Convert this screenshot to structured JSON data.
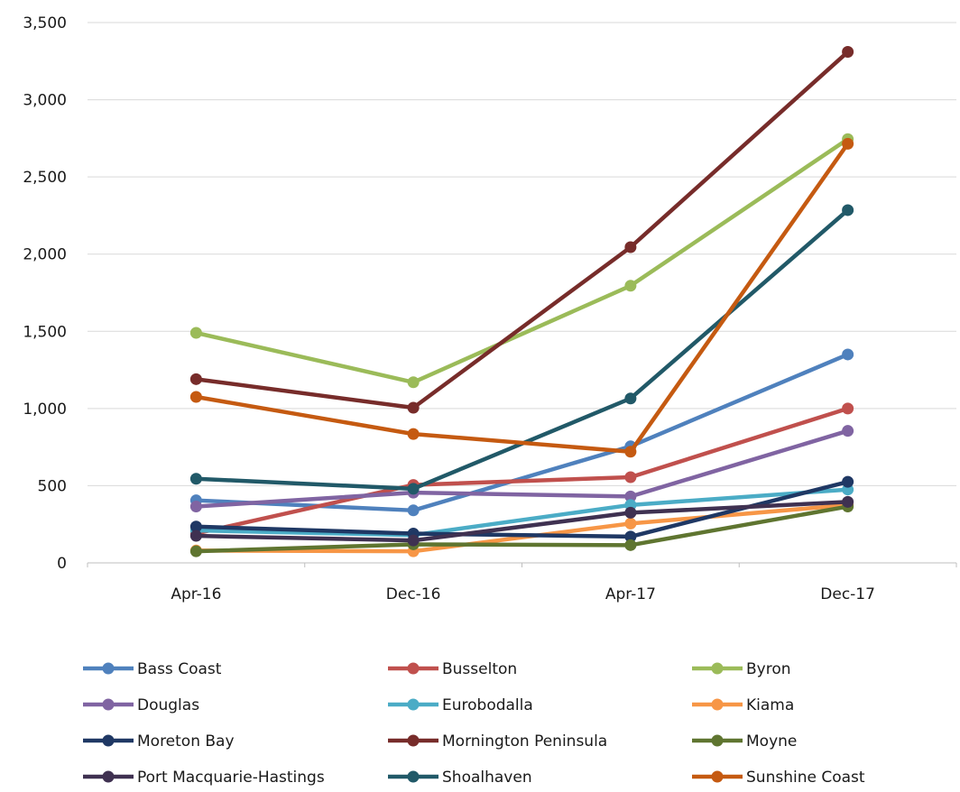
{
  "chart_data": {
    "type": "line",
    "title": "",
    "xlabel": "",
    "ylabel": "",
    "categories": [
      "Apr-16",
      "Dec-16",
      "Apr-17",
      "Dec-17"
    ],
    "ylim": [
      0,
      3500
    ],
    "yticks": [
      0,
      500,
      1000,
      1500,
      2000,
      2500,
      3000,
      3500
    ],
    "ytick_labels": [
      "0",
      "500",
      "1,000",
      "1,500",
      "2,000",
      "2,500",
      "3,000",
      "3,500"
    ],
    "grid": true,
    "legend_position": "bottom",
    "series": [
      {
        "name": "Bass Coast",
        "color": "#4F81BD",
        "values": [
          405,
          340,
          755,
          1350
        ]
      },
      {
        "name": "Busselton",
        "color": "#C0504D",
        "values": [
          190,
          505,
          555,
          1000
        ]
      },
      {
        "name": "Byron",
        "color": "#9BBB59",
        "values": [
          1490,
          1170,
          1795,
          2745
        ]
      },
      {
        "name": "Douglas",
        "color": "#8064A2",
        "values": [
          365,
          455,
          430,
          855
        ]
      },
      {
        "name": "Eurobodalla",
        "color": "#4BACC6",
        "values": [
          210,
          180,
          375,
          475
        ]
      },
      {
        "name": "Kiama",
        "color": "#F79646",
        "values": [
          80,
          75,
          255,
          375
        ]
      },
      {
        "name": "Moreton Bay",
        "color": "#1F3864",
        "values": [
          235,
          190,
          170,
          525
        ]
      },
      {
        "name": "Mornington Peninsula",
        "color": "#772C2A",
        "values": [
          1190,
          1005,
          2045,
          3310
        ]
      },
      {
        "name": "Moyne",
        "color": "#5F7530",
        "values": [
          75,
          120,
          115,
          365
        ]
      },
      {
        "name": "Port Macquarie-Hastings",
        "color": "#3F3151",
        "values": [
          175,
          145,
          325,
          395
        ]
      },
      {
        "name": "Shoalhaven",
        "color": "#215968",
        "values": [
          545,
          480,
          1065,
          2285
        ]
      },
      {
        "name": "Sunshine Coast",
        "color": "#C55A11",
        "values": [
          1075,
          835,
          720,
          2715
        ]
      }
    ]
  }
}
